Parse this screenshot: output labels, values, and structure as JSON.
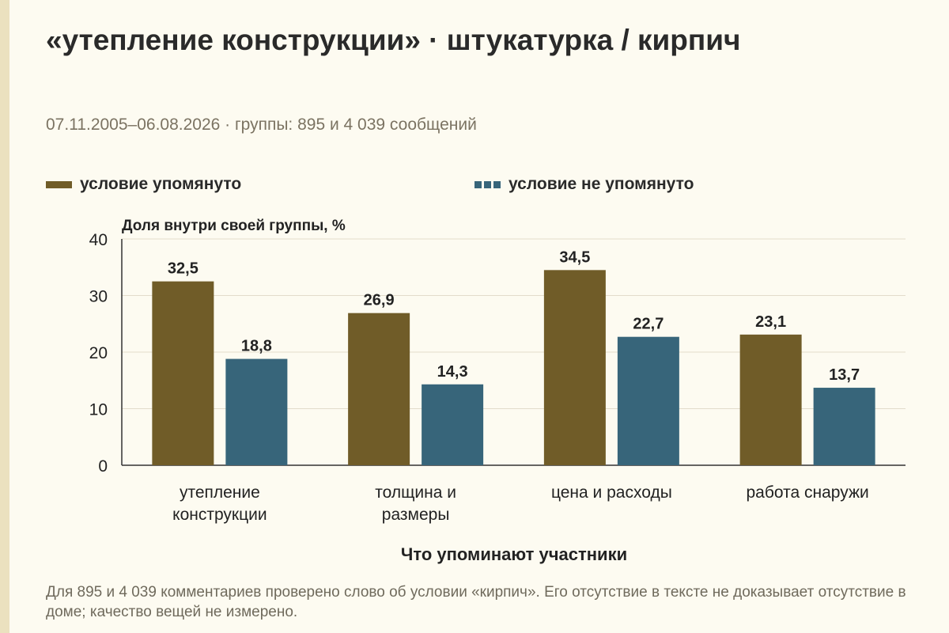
{
  "title": "«утепление конструкции» · штукатурка / кирпич",
  "subtitle": "07.11.2005–06.08.2026 · группы: 895 и 4 039 сообщений",
  "footnote": "Для 895 и 4 039 комментариев проверено слово об условии «кирпич». Его отсутствие в тексте не доказывает отсутствие в доме; качество вещей не измерено.",
  "colors": {
    "mentioned": "#705c28",
    "not_mentioned": "#37657a",
    "grid": "#e2dccb",
    "axis": "#333333"
  },
  "chart_data": {
    "type": "bar",
    "ylabel": "Доля внутри своей группы, %",
    "xlabel": "Что упоминают участники",
    "ylim": [
      0,
      40
    ],
    "yticks": [
      0,
      10,
      20,
      30,
      40
    ],
    "grid": true,
    "legend_placement": "top",
    "categories": [
      [
        "утепление",
        "конструкции"
      ],
      [
        "толщина и",
        "размеры"
      ],
      [
        "цена и расходы"
      ],
      [
        "работа снаружи"
      ]
    ],
    "series": [
      {
        "name": "условие упомянуто",
        "values": [
          32.5,
          26.9,
          34.5,
          23.1
        ],
        "labels": [
          "32,5",
          "26,9",
          "34,5",
          "23,1"
        ]
      },
      {
        "name": "условие не упомянуто",
        "values": [
          18.8,
          14.3,
          22.7,
          13.7
        ],
        "labels": [
          "18,8",
          "14,3",
          "22,7",
          "13,7"
        ]
      }
    ]
  }
}
